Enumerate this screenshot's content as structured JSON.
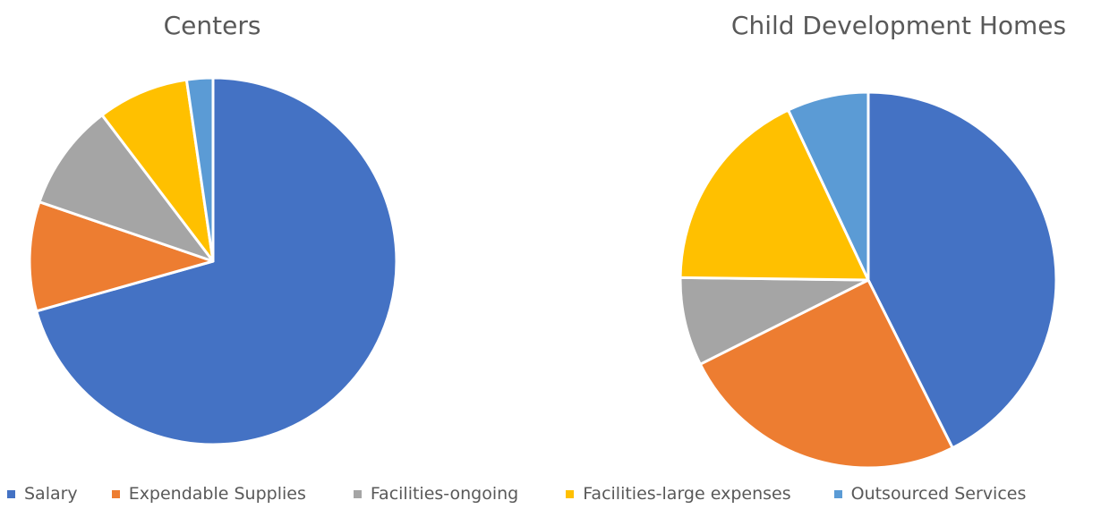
{
  "chart_data": [
    {
      "type": "pie",
      "title": "Centers",
      "categories": [
        "Salary",
        "Expendable Supplies",
        "Facilities-ongoing",
        "Facilities-large expenses",
        "Outsourced Services"
      ],
      "values": [
        70.4,
        9.6,
        9.4,
        8.0,
        2.3
      ],
      "start_angle_deg": 0,
      "direction": "clockwise"
    },
    {
      "type": "pie",
      "title": "Child Development Homes",
      "categories": [
        "Salary",
        "Expendable Supplies",
        "Facilities-ongoing",
        "Facilities-large expenses",
        "Outsourced Services"
      ],
      "values": [
        42.6,
        25.0,
        7.6,
        17.8,
        7.0
      ],
      "start_angle_deg": 0,
      "direction": "clockwise"
    }
  ],
  "legend": {
    "placement": "bottom",
    "items": [
      "Salary",
      "Expendable Supplies",
      "Facilities-ongoing",
      "Facilities-large expenses",
      "Outsourced Services"
    ]
  },
  "colors": [
    "#4472C4",
    "#ED7D31",
    "#A5A5A5",
    "#FFC000",
    "#5B9BD5"
  ],
  "slice_border_color": "#ffffff"
}
